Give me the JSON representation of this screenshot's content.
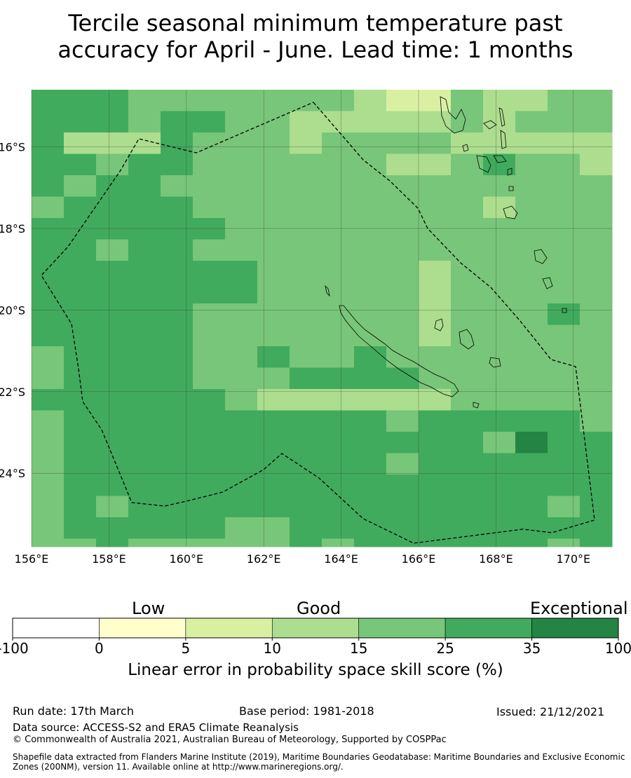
{
  "title": {
    "line1": "Tercile seasonal minimum temperature past",
    "line2": "accuracy for April - June. Lead time: 1 months"
  },
  "map": {
    "lat_labels": [
      "16°S",
      "18°S",
      "20°S",
      "22°S",
      "24°S"
    ],
    "lon_labels": [
      "156°E",
      "158°E",
      "160°E",
      "162°E",
      "164°E",
      "166°E",
      "168°E",
      "170°E"
    ],
    "extent": {
      "lon_min": 156,
      "lon_max": 171,
      "lat_min": -25.8,
      "lat_max": -14.6
    },
    "boundary_line": "dashed",
    "landmasses": [
      "New Caledonia",
      "Loyalty Islands",
      "Vanuatu"
    ]
  },
  "legend": {
    "qualitative": [
      "Low",
      "Good",
      "Exceptional"
    ],
    "ticks": [
      "-100",
      "0",
      "5",
      "10",
      "15",
      "25",
      "35",
      "100"
    ],
    "bins": [
      {
        "from": -100,
        "to": 0,
        "color": "#ffffff"
      },
      {
        "from": 0,
        "to": 5,
        "color": "#ffffcc"
      },
      {
        "from": 5,
        "to": 10,
        "color": "#d9f0a3"
      },
      {
        "from": 10,
        "to": 15,
        "color": "#addd8e"
      },
      {
        "from": 15,
        "to": 25,
        "color": "#78c679"
      },
      {
        "from": 25,
        "to": 35,
        "color": "#41ab5d"
      },
      {
        "from": 35,
        "to": 100,
        "color": "#238443"
      }
    ],
    "label": "Linear error in probability space skill score (%)"
  },
  "footer": {
    "run_date": "Run date: 17th March",
    "base_period": "Base period: 1981-2018",
    "issued": "Issued: 21/12/2021",
    "data_source": "Data source: ACCESS-S2 and ERA5 Climate Reanalysis",
    "copyright": "© Commonwealth of Australia 2021, Australian Bureau of Meteorology, Supported by COSPPac",
    "shapefile": "Shapefile data extracted from Flanders Marine Institute (2019), Maritime Boundaries Geodatabase: Maritime Boundaries and Exclusive Economic Zones (200NM), version 11. Available online at http://www.marineregions.org/."
  }
}
